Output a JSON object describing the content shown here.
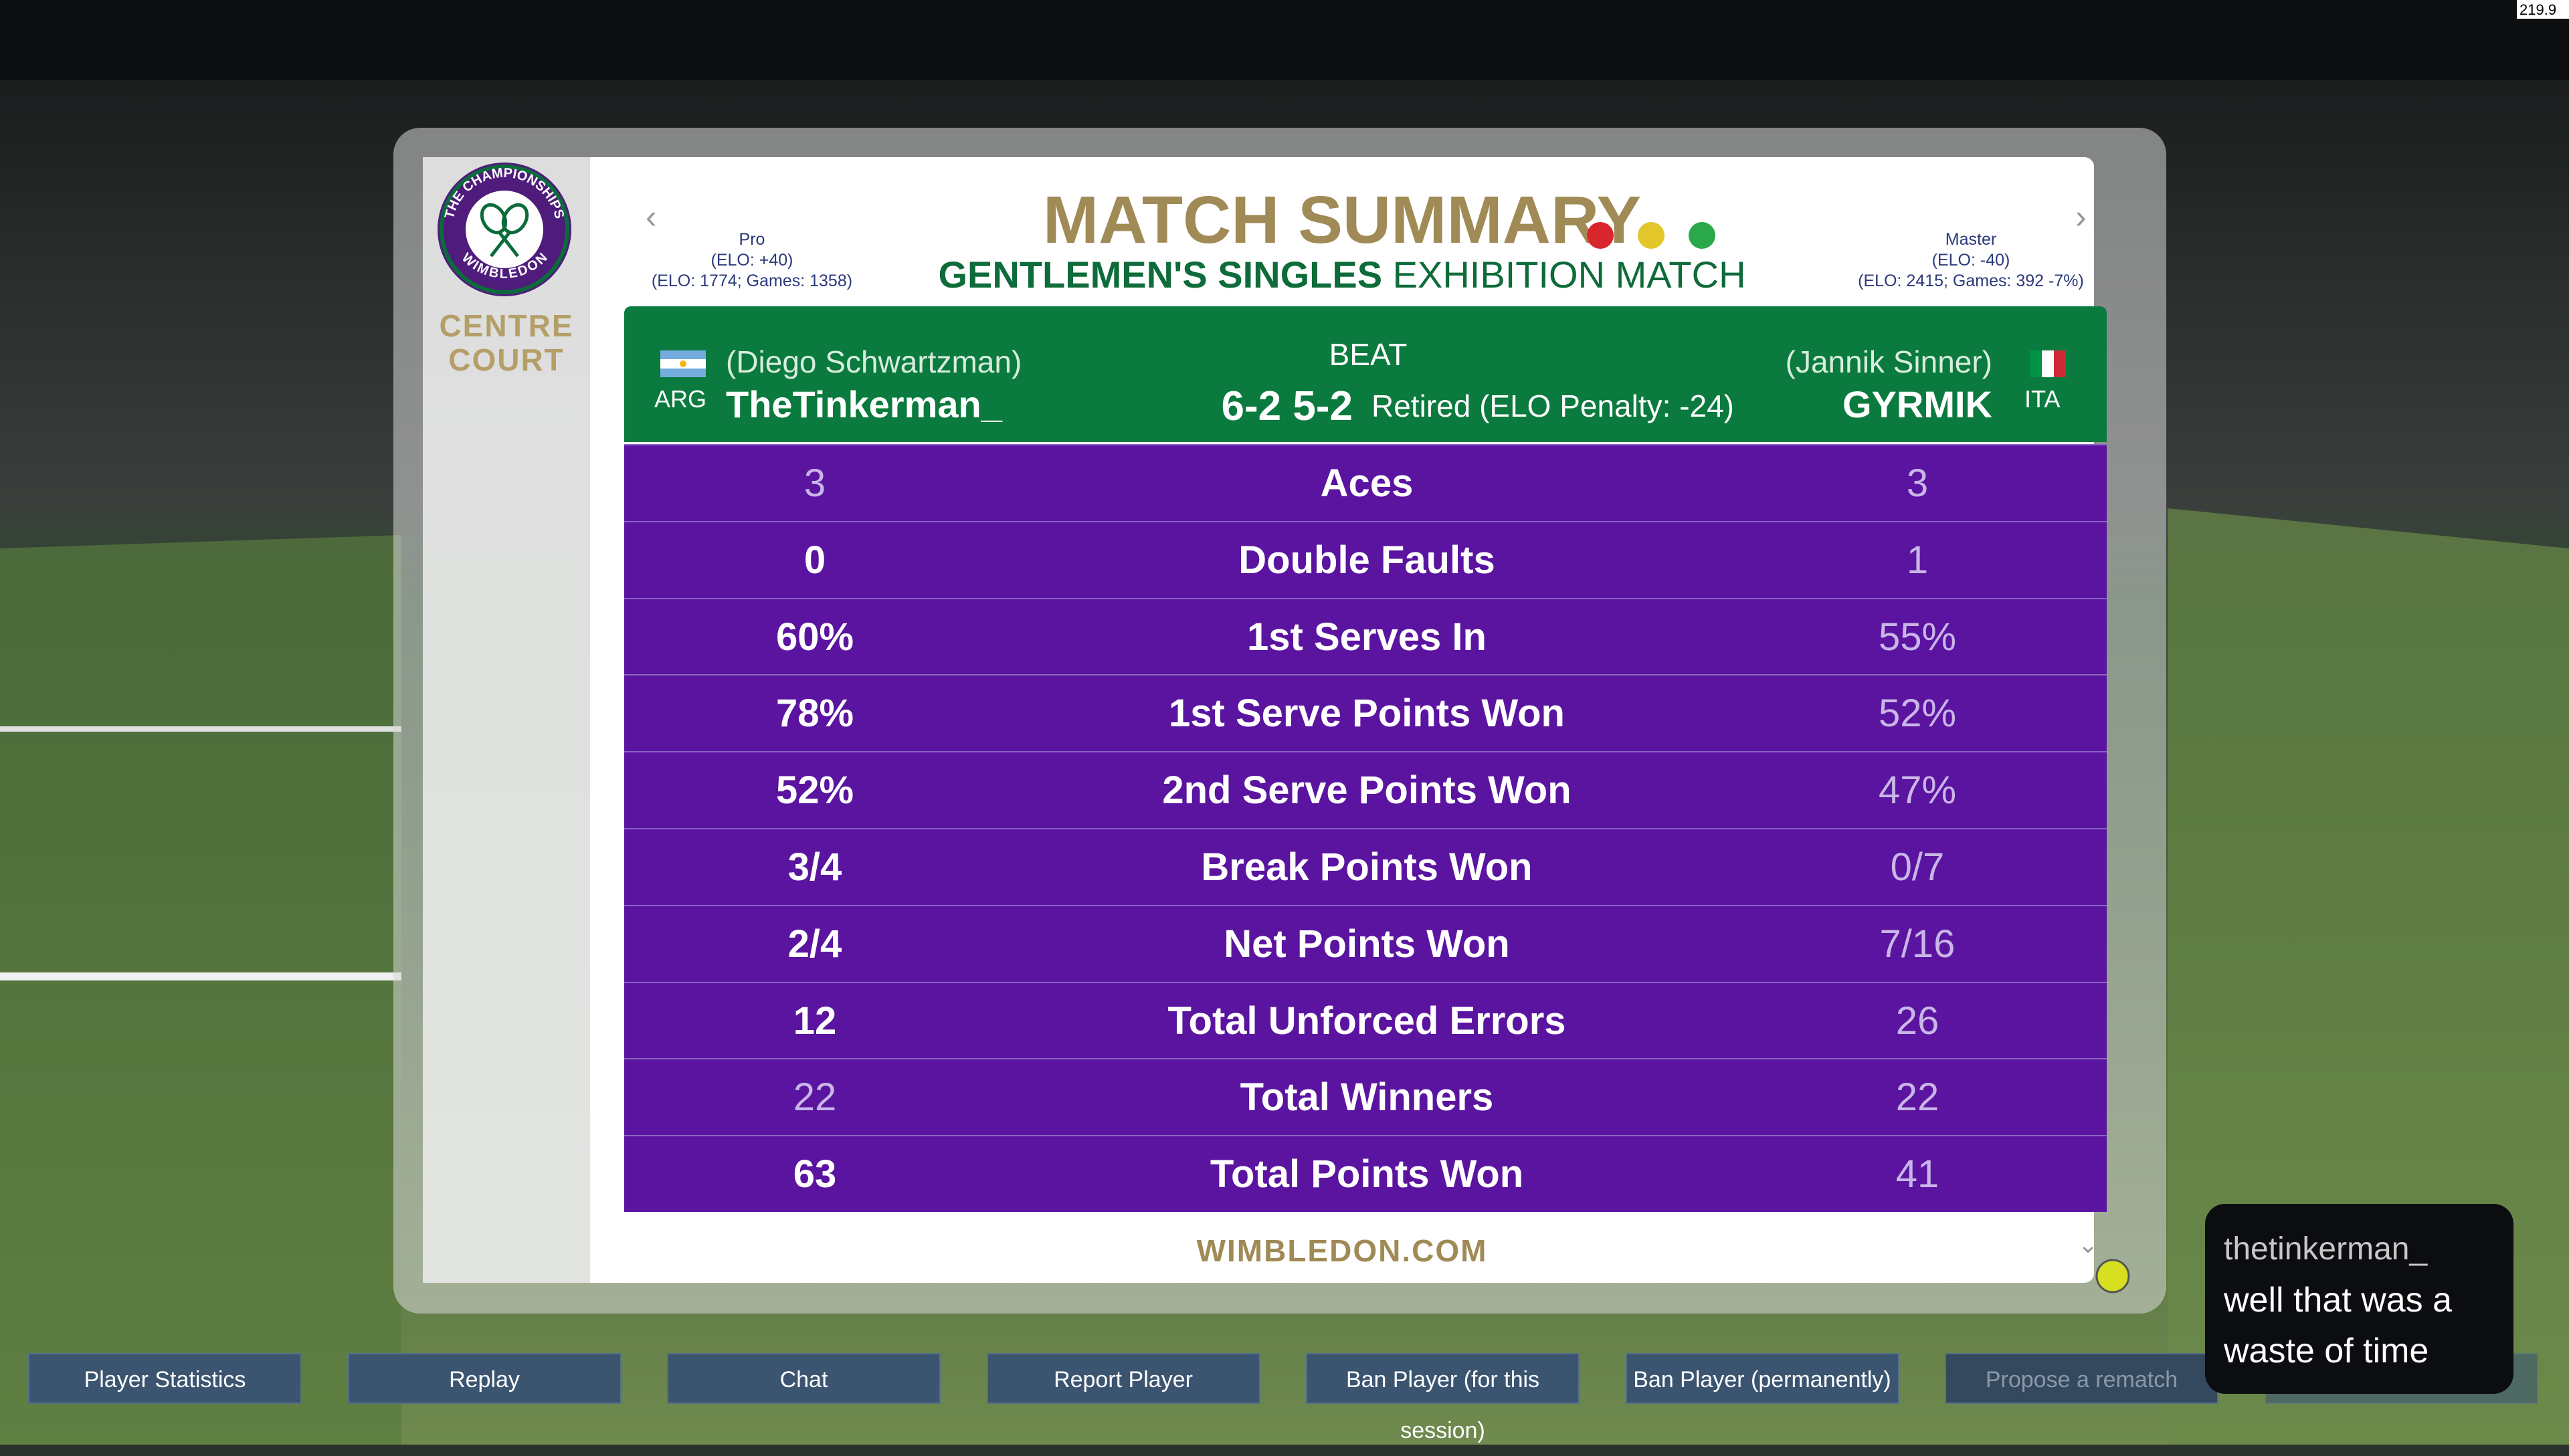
{
  "status": {
    "fps": "219.9"
  },
  "logo": {
    "top": "THE CHAMPIONSHIPS",
    "bottom": "WIMBLEDON"
  },
  "venue": {
    "line1": "CENTRE",
    "line2": "COURT"
  },
  "header": {
    "title": "MATCH SUMMARY",
    "event": "GENTLEMEN'S SINGLES",
    "match_type": "EXHIBITION MATCH"
  },
  "players": [
    {
      "level": "Pro",
      "elo_change": "(ELO: +40)",
      "record": "(ELO: 1774; Games: 1358)",
      "country": "ARG",
      "alias": "(Diego Schwartzman)",
      "name": "TheTinkerman_"
    },
    {
      "level": "Master",
      "elo_change": "(ELO: -40)",
      "record": "(ELO: 2415; Games: 392 -7%)",
      "country": "ITA",
      "alias": "(Jannik Sinner)",
      "name": "GYRMIK"
    }
  ],
  "result": {
    "verb": "BEAT",
    "score": "6-2 5-2",
    "note": "Retired (ELO Penalty: -24)"
  },
  "stats": {
    "rows": [
      {
        "left": "3",
        "label": "Aces",
        "right": "3",
        "left_bold": false
      },
      {
        "left": "0",
        "label": "Double Faults",
        "right": "1",
        "left_bold": true
      },
      {
        "left": "60%",
        "label": "1st Serves In",
        "right": "55%",
        "left_bold": true
      },
      {
        "left": "78%",
        "label": "1st Serve Points Won",
        "right": "52%",
        "left_bold": true
      },
      {
        "left": "52%",
        "label": "2nd Serve Points Won",
        "right": "47%",
        "left_bold": true
      },
      {
        "left": "3/4",
        "label": "Break Points Won",
        "right": "0/7",
        "left_bold": true
      },
      {
        "left": "2/4",
        "label": "Net Points Won",
        "right": "7/16",
        "left_bold": true
      },
      {
        "left": "12",
        "label": "Total Unforced Errors",
        "right": "26",
        "left_bold": true
      },
      {
        "left": "22",
        "label": "Total Winners",
        "right": "22",
        "left_bold": false
      },
      {
        "left": "63",
        "label": "Total Points Won",
        "right": "41",
        "left_bold": true
      }
    ]
  },
  "footer": "WIMBLEDON.COM",
  "chat": {
    "user": "thetinkerman_",
    "message": "well that was a waste of time"
  },
  "buttons": [
    {
      "label": "Player Statistics",
      "enabled": true
    },
    {
      "label": "Replay",
      "enabled": true
    },
    {
      "label": "Chat",
      "enabled": true
    },
    {
      "label": "Report Player",
      "enabled": true
    },
    {
      "label": "Ban Player (for this session)",
      "enabled": true
    },
    {
      "label": "Ban Player (permanently)",
      "enabled": true
    },
    {
      "label": "Propose a rematch",
      "enabled": false
    }
  ]
}
